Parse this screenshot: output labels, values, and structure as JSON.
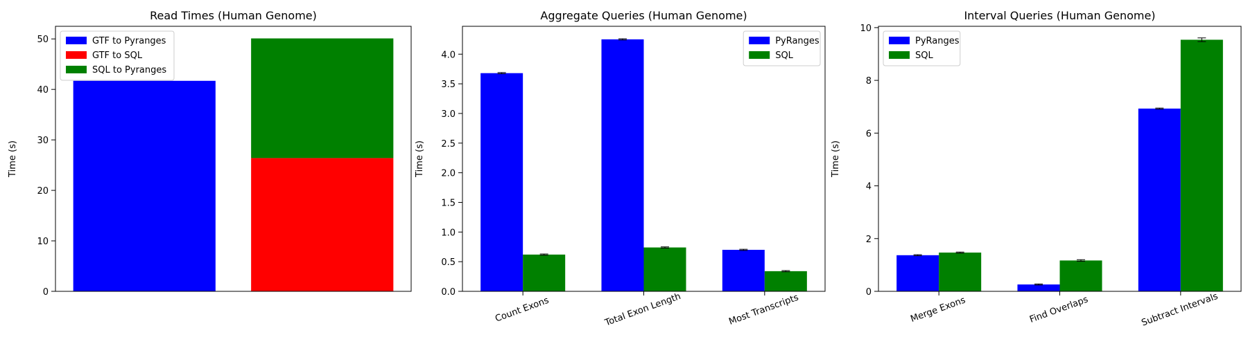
{
  "chart_data": [
    {
      "type": "bar",
      "stacked": true,
      "title": "Read Times (Human Genome)",
      "xlabel": "",
      "ylabel": "Time (s)",
      "ylim": [
        0,
        52.5
      ],
      "yticks": [
        0,
        10,
        20,
        30,
        40,
        50
      ],
      "categories": [
        "",
        ""
      ],
      "series": [
        {
          "name": "GTF to Pyranges",
          "color": "#0000ff",
          "values": [
            41.7,
            0
          ]
        },
        {
          "name": "GTF to SQL",
          "color": "#ff0000",
          "values": [
            0,
            26.4
          ]
        },
        {
          "name": "SQL to Pyranges",
          "color": "#008000",
          "values": [
            0,
            23.7
          ]
        }
      ],
      "legend": "top-left",
      "grid": false
    },
    {
      "type": "bar",
      "title": "Aggregate Queries (Human Genome)",
      "xlabel": "",
      "ylabel": "Time (s)",
      "ylim": [
        0,
        4.47
      ],
      "yticks": [
        0.0,
        0.5,
        1.0,
        1.5,
        2.0,
        2.5,
        3.0,
        3.5,
        4.0
      ],
      "yticklabels": [
        "0.0",
        "0.5",
        "1.0",
        "1.5",
        "2.0",
        "2.5",
        "3.0",
        "3.5",
        "4.0"
      ],
      "categories": [
        "Count Exons",
        "Total Exon Length",
        "Most Transcripts"
      ],
      "series": [
        {
          "name": "PyRanges",
          "color": "#0000ff",
          "values": [
            3.68,
            4.25,
            0.7
          ],
          "errors": [
            0.01,
            0.01,
            0.01
          ]
        },
        {
          "name": "SQL",
          "color": "#008000",
          "values": [
            0.62,
            0.74,
            0.34
          ],
          "errors": [
            0.01,
            0.01,
            0.01
          ]
        }
      ],
      "legend": "top-right",
      "grid": false
    },
    {
      "type": "bar",
      "title": "Interval Queries (Human Genome)",
      "xlabel": "",
      "ylabel": "Time (s)",
      "ylim": [
        0,
        10.05
      ],
      "yticks": [
        0,
        2,
        4,
        6,
        8,
        10
      ],
      "categories": [
        "Merge Exons",
        "Find Overlaps",
        "Subtract Intervals"
      ],
      "series": [
        {
          "name": "PyRanges",
          "color": "#0000ff",
          "values": [
            1.37,
            0.26,
            6.93
          ],
          "errors": [
            0.02,
            0.02,
            0.02
          ]
        },
        {
          "name": "SQL",
          "color": "#008000",
          "values": [
            1.47,
            1.17,
            9.54
          ],
          "errors": [
            0.02,
            0.03,
            0.07
          ]
        }
      ],
      "legend": "top-left",
      "grid": false
    }
  ]
}
